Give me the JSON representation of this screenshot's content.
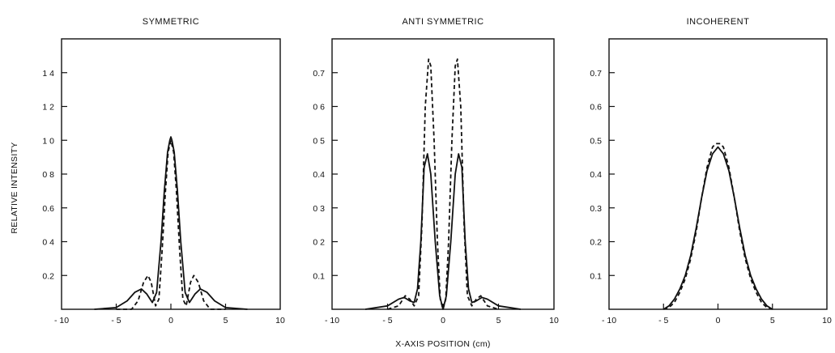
{
  "figure": {
    "ylabel": "RELATIVE INTENSITY",
    "xlabel": "X-AXIS POSITION (cm)"
  },
  "chart_data": [
    {
      "type": "line",
      "title": "SYMMETRIC",
      "xlim": [
        -10,
        10
      ],
      "ylim": [
        0,
        1.6
      ],
      "xticks": [
        -10,
        -5,
        0,
        5,
        10
      ],
      "xtick_labels": [
        "- 10",
        "- 5",
        "0",
        "5",
        "10"
      ],
      "yticks": [
        0.2,
        0.4,
        0.6,
        0.8,
        1.0,
        1.2,
        1.4
      ],
      "ytick_labels": [
        "0.2",
        "0 4",
        "0.6",
        "0 8",
        "1 0",
        "1 2",
        "1 4"
      ],
      "series": [
        {
          "style": "solid",
          "x": [
            -7,
            -5,
            -4,
            -3.3,
            -2.7,
            -2.2,
            -1.7,
            -1.3,
            -0.9,
            -0.6,
            -0.3,
            -0.1,
            0,
            0.1,
            0.3,
            0.6,
            0.9,
            1.3,
            1.7,
            2.2,
            2.7,
            3.3,
            4,
            5,
            7
          ],
          "y": [
            0,
            0.01,
            0.05,
            0.1,
            0.12,
            0.09,
            0.04,
            0.1,
            0.4,
            0.7,
            0.93,
            1.0,
            1.02,
            1.0,
            0.93,
            0.7,
            0.4,
            0.1,
            0.04,
            0.09,
            0.12,
            0.1,
            0.05,
            0.01,
            0
          ]
        },
        {
          "style": "dashed",
          "x": [
            -5,
            -3.6,
            -3,
            -2.5,
            -2.1,
            -1.8,
            -1.4,
            -1.1,
            -0.8,
            -0.5,
            -0.25,
            0,
            0.25,
            0.5,
            0.8,
            1.1,
            1.4,
            1.8,
            2.1,
            2.5,
            3,
            3.6,
            5
          ],
          "y": [
            0,
            0,
            0.05,
            0.16,
            0.2,
            0.16,
            0.02,
            0.06,
            0.35,
            0.7,
            0.93,
            1.0,
            0.93,
            0.7,
            0.35,
            0.06,
            0.02,
            0.16,
            0.2,
            0.16,
            0.05,
            0,
            0
          ]
        }
      ]
    },
    {
      "type": "line",
      "title": "ANTI SYMMETRIC",
      "xlim": [
        -10,
        10
      ],
      "ylim": [
        0,
        0.8
      ],
      "xticks": [
        -10,
        -5,
        0,
        5,
        10
      ],
      "xtick_labels": [
        "- 10",
        "- 5",
        "0",
        "5",
        "10"
      ],
      "yticks": [
        0.1,
        0.2,
        0.3,
        0.4,
        0.5,
        0.6,
        0.7
      ],
      "ytick_labels": [
        "0.1",
        "0 2",
        "0 3",
        "0.4",
        "0 5",
        "0 6",
        "0.7"
      ],
      "series": [
        {
          "style": "solid",
          "x": [
            -7,
            -5,
            -4,
            -3.5,
            -3,
            -2.6,
            -2.3,
            -2,
            -1.7,
            -1.4,
            -1.1,
            -0.7,
            -0.3,
            0,
            0.3,
            0.7,
            1.1,
            1.4,
            1.7,
            2,
            2.3,
            2.6,
            3,
            3.5,
            4,
            5,
            7
          ],
          "y": [
            0,
            0.01,
            0.03,
            0.035,
            0.025,
            0.02,
            0.06,
            0.2,
            0.42,
            0.46,
            0.4,
            0.2,
            0.04,
            0,
            0.04,
            0.2,
            0.4,
            0.46,
            0.42,
            0.2,
            0.06,
            0.02,
            0.025,
            0.035,
            0.03,
            0.01,
            0
          ]
        },
        {
          "style": "dashed",
          "x": [
            -5,
            -4,
            -3.4,
            -3,
            -2.6,
            -2.2,
            -1.9,
            -1.6,
            -1.3,
            -1.1,
            -0.8,
            -0.5,
            -0.25,
            0,
            0.25,
            0.5,
            0.8,
            1.1,
            1.3,
            1.6,
            1.9,
            2.2,
            2.6,
            3,
            3.4,
            4,
            5
          ],
          "y": [
            0,
            0.01,
            0.04,
            0.03,
            0.01,
            0.04,
            0.25,
            0.6,
            0.74,
            0.72,
            0.5,
            0.2,
            0.03,
            0,
            0.03,
            0.2,
            0.5,
            0.72,
            0.74,
            0.6,
            0.25,
            0.04,
            0.01,
            0.03,
            0.04,
            0.01,
            0
          ]
        }
      ]
    },
    {
      "type": "line",
      "title": "INCOHERENT",
      "xlim": [
        -10,
        10
      ],
      "ylim": [
        0,
        0.8
      ],
      "xticks": [
        -10,
        -5,
        0,
        5,
        10
      ],
      "xtick_labels": [
        "- 10",
        "- 5",
        "0",
        "5",
        "10"
      ],
      "yticks": [
        0.1,
        0.2,
        0.3,
        0.4,
        0.5,
        0.6,
        0.7
      ],
      "ytick_labels": [
        "0.1",
        "0.2",
        "0.3",
        "0.4",
        "0.5",
        "0.6",
        "0.7"
      ],
      "series": [
        {
          "style": "solid",
          "x": [
            -5,
            -4.5,
            -4,
            -3.5,
            -3,
            -2.5,
            -2,
            -1.5,
            -1,
            -0.5,
            0,
            0.5,
            1,
            1.5,
            2,
            2.5,
            3,
            3.5,
            4,
            4.5,
            5
          ],
          "y": [
            0,
            0.01,
            0.03,
            0.06,
            0.1,
            0.16,
            0.24,
            0.33,
            0.41,
            0.46,
            0.48,
            0.46,
            0.41,
            0.33,
            0.24,
            0.16,
            0.1,
            0.06,
            0.03,
            0.01,
            0
          ]
        },
        {
          "style": "dashed",
          "x": [
            -5,
            -4.5,
            -4,
            -3.5,
            -3,
            -2.5,
            -2,
            -1.5,
            -1,
            -0.5,
            -0.2,
            0,
            0.2,
            0.5,
            1,
            1.5,
            2,
            2.5,
            3,
            3.5,
            4,
            4.5,
            5
          ],
          "y": [
            0,
            0.005,
            0.02,
            0.05,
            0.09,
            0.15,
            0.23,
            0.33,
            0.42,
            0.48,
            0.49,
            0.49,
            0.49,
            0.48,
            0.42,
            0.33,
            0.23,
            0.15,
            0.09,
            0.05,
            0.02,
            0.005,
            0
          ]
        }
      ]
    }
  ]
}
